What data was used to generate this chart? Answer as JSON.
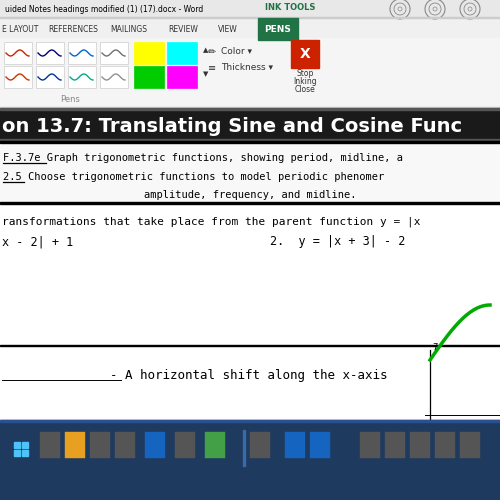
{
  "bg_color": "#f0f0f0",
  "title_bar_text": "uided Notes headings modified (1) (17).docx - Word",
  "ink_tools_label": "INK TOOLS",
  "menu_items": [
    "E LAYOUT",
    "REFERENCES",
    "MAILINGS",
    "REVIEW",
    "VIEW",
    "PENS"
  ],
  "pens_label": "Pens",
  "color_label": "Color ▾",
  "thickness_label": "Thickness ▾",
  "stop_inking": "Stop\nInking\nClose",
  "section_title": "on 13.7: Translating Sine and Cosine Func",
  "standard1": "F.3.7e Graph trigonometric functions, showing period, midline, a",
  "standard2": "2.5 Choose trigonometric functions to model periodic phenomer",
  "standard3": "amplitude, frequency, and midline.",
  "review_text": "ransformations that take place from the parent function y = |x",
  "eq1": "x - 2| + 1",
  "eq2": "2.  y = |x + 3| - 2",
  "phase_blank": "_______________",
  "phase_def": "- A horizontal shift along the x-axis",
  "white": "#ffffff",
  "black": "#000000",
  "dark_gray": "#333333",
  "medium_gray": "#888888",
  "light_gray": "#cccccc",
  "very_light_gray": "#f0f0f0",
  "green_dark": "#217346",
  "blue_taskbar": "#1e3a5f",
  "red_close": "#cc2200",
  "yellow_pen": "#ffff00",
  "cyan_pen": "#00ffff",
  "green_pen": "#00cc00",
  "magenta_pen": "#ff00ff",
  "green_curve": "#00aa00",
  "title_bar_bg": "#e8e8e8",
  "ribbon_bg": "#f5f5f5",
  "content_bg": "#ffffff",
  "section_bg": "#1a1a1a",
  "standards_bg": "#f8f8f8"
}
